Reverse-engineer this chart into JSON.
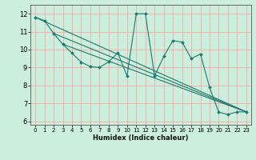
{
  "title": "",
  "xlabel": "Humidex (Indice chaleur)",
  "bg_color": "#cceedd",
  "grid_color": "#ff9999",
  "line_color": "#1a7a6e",
  "xlim": [
    -0.5,
    23.5
  ],
  "ylim": [
    5.8,
    12.5
  ],
  "yticks": [
    6,
    7,
    8,
    9,
    10,
    11,
    12
  ],
  "xticks": [
    0,
    1,
    2,
    3,
    4,
    5,
    6,
    7,
    8,
    9,
    10,
    11,
    12,
    13,
    14,
    15,
    16,
    17,
    18,
    19,
    20,
    21,
    22,
    23
  ],
  "x_main": [
    0,
    1,
    2,
    3,
    4,
    5,
    6,
    7,
    8,
    9,
    10,
    11,
    12,
    13,
    14,
    15,
    16,
    17,
    18,
    19,
    20,
    21,
    22,
    23
  ],
  "y_main": [
    11.8,
    11.62,
    10.9,
    10.3,
    9.8,
    9.3,
    9.05,
    9.0,
    9.32,
    9.82,
    8.52,
    12.0,
    12.0,
    8.52,
    9.62,
    10.5,
    10.42,
    9.5,
    9.75,
    7.88,
    6.5,
    6.38,
    6.52,
    6.52
  ],
  "trend_lines": [
    {
      "x": [
        0,
        23
      ],
      "y": [
        11.8,
        6.52
      ]
    },
    {
      "x": [
        2,
        23
      ],
      "y": [
        10.9,
        6.52
      ]
    },
    {
      "x": [
        3,
        23
      ],
      "y": [
        10.3,
        6.52
      ]
    }
  ]
}
